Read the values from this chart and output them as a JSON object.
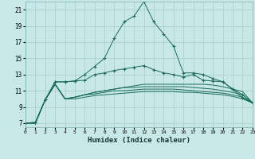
{
  "xlabel": "Humidex (Indice chaleur)",
  "background_color": "#c8e8e8",
  "grid_color": "#a8cccc",
  "line_color": "#1a6b5a",
  "x_values": [
    0,
    1,
    2,
    3,
    4,
    5,
    6,
    7,
    8,
    9,
    10,
    11,
    12,
    13,
    14,
    15,
    16,
    17,
    18,
    19,
    20,
    21,
    22,
    23
  ],
  "xlim": [
    0,
    23
  ],
  "ylim": [
    6.5,
    22.0
  ],
  "yticks": [
    7,
    9,
    11,
    13,
    15,
    17,
    19,
    21
  ],
  "series": [
    {
      "y": [
        7.0,
        7.1,
        9.9,
        12.1,
        12.1,
        12.2,
        12.3,
        13.0,
        13.2,
        13.5,
        13.7,
        13.9,
        14.1,
        13.6,
        13.2,
        13.0,
        12.7,
        13.0,
        12.3,
        12.2,
        12.1,
        11.2,
        10.1,
        9.5
      ],
      "marker": true
    },
    {
      "y": [
        7.0,
        7.0,
        9.9,
        11.8,
        10.0,
        10.2,
        10.5,
        10.8,
        11.0,
        11.2,
        11.4,
        11.6,
        11.8,
        11.8,
        11.8,
        11.8,
        11.8,
        11.8,
        11.8,
        11.7,
        11.5,
        11.2,
        10.9,
        9.5
      ],
      "marker": false
    },
    {
      "y": [
        7.0,
        7.0,
        9.9,
        11.8,
        10.0,
        10.2,
        10.5,
        10.8,
        11.0,
        11.2,
        11.4,
        11.4,
        11.5,
        11.5,
        11.5,
        11.5,
        11.5,
        11.4,
        11.3,
        11.2,
        11.0,
        10.8,
        10.5,
        9.5
      ],
      "marker": false
    },
    {
      "y": [
        7.0,
        7.0,
        9.9,
        11.8,
        10.0,
        10.2,
        10.5,
        10.6,
        10.8,
        11.0,
        11.0,
        11.1,
        11.2,
        11.2,
        11.2,
        11.2,
        11.1,
        11.0,
        10.9,
        10.8,
        10.7,
        10.5,
        10.2,
        9.5
      ],
      "marker": false
    },
    {
      "y": [
        7.0,
        7.0,
        9.9,
        11.8,
        10.0,
        10.0,
        10.2,
        10.4,
        10.5,
        10.6,
        10.7,
        10.8,
        10.9,
        10.9,
        10.9,
        10.9,
        10.8,
        10.8,
        10.7,
        10.6,
        10.5,
        10.3,
        10.0,
        9.5
      ],
      "marker": false
    },
    {
      "y": [
        7.0,
        7.1,
        9.9,
        12.1,
        12.1,
        12.2,
        13.0,
        14.0,
        15.0,
        17.5,
        19.5,
        20.2,
        22.0,
        19.5,
        18.0,
        16.5,
        13.2,
        13.2,
        13.0,
        12.5,
        12.1,
        11.2,
        10.5,
        9.5
      ],
      "marker": true
    }
  ]
}
